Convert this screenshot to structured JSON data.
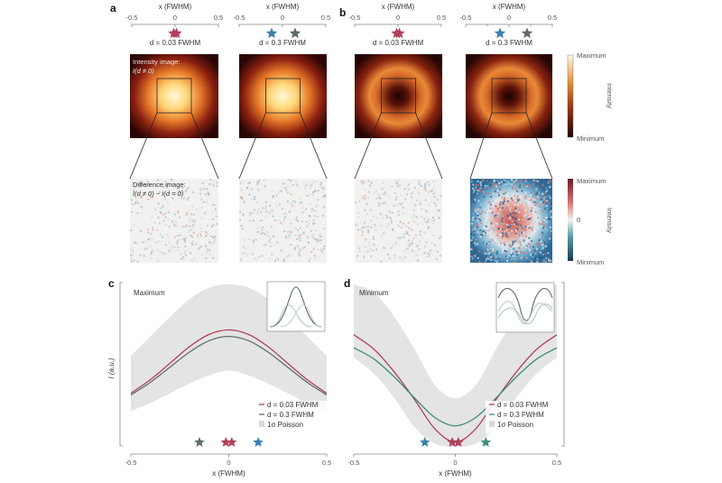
{
  "panels": {
    "a": {
      "label": "a",
      "axis_title": "x (FWHM)",
      "ticks": [
        "-0.5",
        "0",
        "0.5"
      ],
      "left": {
        "separation": "d = 0.03 FWHM"
      },
      "right": {
        "separation": "d = 0.3 FWHM"
      },
      "intensity_label_line1": "Intensity image:",
      "intensity_label_line2": "I(d ≠ 0)",
      "difference_label_line1": "Difference image:",
      "difference_label_line2": "I(d ≠ 0) − I(d = 0)"
    },
    "b": {
      "label": "b",
      "axis_title": "x (FWHM)",
      "ticks": [
        "-0.5",
        "0",
        "0.5"
      ],
      "left": {
        "separation": "d = 0.03 FWHM"
      },
      "right": {
        "separation": "d = 0.3 FWHM"
      }
    },
    "colorbar_intensity": {
      "max": "Maximum",
      "min": "Minimum",
      "title": "Intensity"
    },
    "colorbar_difference": {
      "max": "Maximum",
      "zero": "0",
      "min": "Minimum",
      "title": "Intensity"
    }
  },
  "colors": {
    "red": "#b0405a",
    "grey": "#5f6b6b",
    "teal": "#3d8c7a",
    "blue": "#3a7fb0",
    "band": "#e4e4e4"
  },
  "chart_data": [
    {
      "type": "line",
      "panel": "c",
      "title": "Maximum",
      "xlabel": "x (FWHM)",
      "ylabel": "I (a.u.)",
      "xlim": [
        -0.5,
        0.5
      ],
      "ylim": [
        0,
        1
      ],
      "xticks": [
        "-0.5",
        "0",
        "0.5"
      ],
      "x": [
        -0.5,
        -0.4,
        -0.3,
        -0.2,
        -0.1,
        0,
        0.1,
        0.2,
        0.3,
        0.4,
        0.5
      ],
      "series": [
        {
          "name": "d = 0.03 FWHM",
          "color": "#b0405a",
          "values": [
            0.33,
            0.414,
            0.515,
            0.617,
            0.692,
            0.72,
            0.692,
            0.617,
            0.515,
            0.414,
            0.33
          ]
        },
        {
          "name": "d = 0.3 FWHM",
          "color": "#5f6b6b",
          "values": [
            0.32,
            0.397,
            0.491,
            0.584,
            0.654,
            0.68,
            0.654,
            0.584,
            0.491,
            0.397,
            0.32
          ]
        }
      ],
      "band": {
        "name": "1σ Poisson",
        "upper": [
          0.56,
          0.68,
          0.8,
          0.91,
          0.98,
          1.0,
          0.98,
          0.91,
          0.8,
          0.68,
          0.56
        ],
        "lower": [
          0.22,
          0.27,
          0.33,
          0.39,
          0.44,
          0.47,
          0.44,
          0.39,
          0.33,
          0.27,
          0.22
        ]
      },
      "markers": [
        {
          "x": -0.15,
          "color": "#5f6b6b"
        },
        {
          "x": -0.015,
          "color": "#b0405a"
        },
        {
          "x": 0.015,
          "color": "#b0405a"
        },
        {
          "x": 0.15,
          "color": "#3a7fb0"
        }
      ],
      "legend": [
        "d = 0.03 FWHM",
        "d = 0.3 FWHM",
        "1σ Poisson"
      ],
      "legend_position": "bottom-right"
    },
    {
      "type": "line",
      "panel": "d",
      "title": "Minimum",
      "xlabel": "x (FWHM)",
      "ylabel": "",
      "xlim": [
        -0.5,
        0.5
      ],
      "ylim": [
        0,
        1
      ],
      "xticks": [
        "-0.5",
        "0",
        "0.5"
      ],
      "x": [
        -0.5,
        -0.4,
        -0.3,
        -0.2,
        -0.1,
        0,
        0.1,
        0.2,
        0.3,
        0.4,
        0.5
      ],
      "series": [
        {
          "name": "d = 0.03 FWHM",
          "color": "#b0405a",
          "values": [
            0.69,
            0.6,
            0.46,
            0.29,
            0.11,
            0.03,
            0.11,
            0.29,
            0.46,
            0.6,
            0.69
          ]
        },
        {
          "name": "d = 0.3 FWHM",
          "color": "#3d8c7a",
          "values": [
            0.61,
            0.54,
            0.43,
            0.3,
            0.18,
            0.13,
            0.18,
            0.3,
            0.43,
            0.54,
            0.61
          ]
        }
      ],
      "band": {
        "name": "1σ Poisson",
        "upper": [
          1.0,
          0.95,
          0.8,
          0.6,
          0.38,
          0.3,
          0.38,
          0.6,
          0.8,
          0.95,
          1.0
        ],
        "lower": [
          0.55,
          0.45,
          0.3,
          0.12,
          0.02,
          0.0,
          0.02,
          0.12,
          0.3,
          0.45,
          0.55
        ]
      },
      "markers": [
        {
          "x": -0.15,
          "color": "#3a7fb0"
        },
        {
          "x": -0.015,
          "color": "#b0405a"
        },
        {
          "x": 0.015,
          "color": "#b0405a"
        },
        {
          "x": 0.15,
          "color": "#3d8c7a"
        }
      ],
      "legend": [
        "d = 0.03 FWHM",
        "d = 0.3 FWHM",
        "1σ Poisson"
      ],
      "legend_position": "bottom-right"
    }
  ]
}
